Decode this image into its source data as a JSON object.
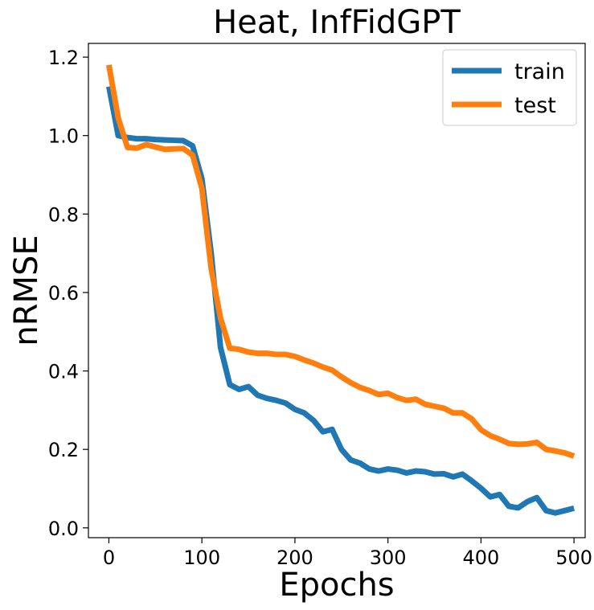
{
  "chart_data": {
    "type": "line",
    "title": "Heat, InfFidGPT",
    "xlabel": "Epochs",
    "ylabel": "nRMSE",
    "xlim": [
      -22,
      512
    ],
    "ylim": [
      -0.025,
      1.235
    ],
    "xticks": [
      0,
      100,
      200,
      300,
      400,
      500
    ],
    "xtick_labels": [
      "0",
      "100",
      "200",
      "300",
      "400",
      "500"
    ],
    "yticks": [
      0.0,
      0.2,
      0.4,
      0.6,
      0.8,
      1.0,
      1.2
    ],
    "ytick_labels": [
      "0.0",
      "0.2",
      "0.4",
      "0.6",
      "0.8",
      "1.0",
      "1.2"
    ],
    "grid": false,
    "legend_position": "top-right",
    "series": [
      {
        "name": "train",
        "color": "#1f77b4",
        "x": [
          0,
          10,
          20,
          30,
          40,
          50,
          60,
          70,
          80,
          90,
          100,
          110,
          120,
          130,
          140,
          150,
          160,
          170,
          180,
          190,
          200,
          210,
          220,
          230,
          240,
          250,
          260,
          270,
          280,
          290,
          300,
          310,
          320,
          330,
          340,
          350,
          360,
          370,
          380,
          390,
          400,
          410,
          420,
          430,
          440,
          450,
          460,
          470,
          480,
          490,
          500
        ],
        "y": [
          1.125,
          1.0,
          0.995,
          0.992,
          0.992,
          0.99,
          0.989,
          0.988,
          0.987,
          0.974,
          0.89,
          0.7,
          0.46,
          0.365,
          0.353,
          0.36,
          0.338,
          0.33,
          0.325,
          0.318,
          0.302,
          0.293,
          0.274,
          0.245,
          0.251,
          0.2,
          0.173,
          0.165,
          0.15,
          0.145,
          0.15,
          0.147,
          0.14,
          0.145,
          0.143,
          0.137,
          0.138,
          0.13,
          0.137,
          0.12,
          0.101,
          0.079,
          0.085,
          0.055,
          0.051,
          0.067,
          0.077,
          0.044,
          0.038,
          0.044,
          0.05
        ]
      },
      {
        "name": "test",
        "color": "#ff7f0e",
        "x": [
          0,
          10,
          20,
          30,
          40,
          50,
          60,
          70,
          80,
          90,
          100,
          110,
          120,
          130,
          140,
          150,
          160,
          170,
          180,
          190,
          200,
          210,
          220,
          230,
          240,
          250,
          260,
          270,
          280,
          290,
          300,
          310,
          320,
          330,
          340,
          350,
          360,
          370,
          380,
          390,
          400,
          410,
          420,
          430,
          440,
          450,
          460,
          470,
          480,
          490,
          500
        ],
        "y": [
          1.18,
          1.045,
          0.97,
          0.968,
          0.977,
          0.971,
          0.965,
          0.966,
          0.967,
          0.95,
          0.865,
          0.66,
          0.535,
          0.458,
          0.455,
          0.448,
          0.445,
          0.445,
          0.442,
          0.442,
          0.437,
          0.428,
          0.42,
          0.41,
          0.402,
          0.385,
          0.37,
          0.358,
          0.35,
          0.34,
          0.343,
          0.332,
          0.325,
          0.328,
          0.315,
          0.31,
          0.305,
          0.293,
          0.293,
          0.278,
          0.25,
          0.235,
          0.226,
          0.215,
          0.213,
          0.214,
          0.218,
          0.2,
          0.196,
          0.191,
          0.183
        ]
      }
    ]
  }
}
